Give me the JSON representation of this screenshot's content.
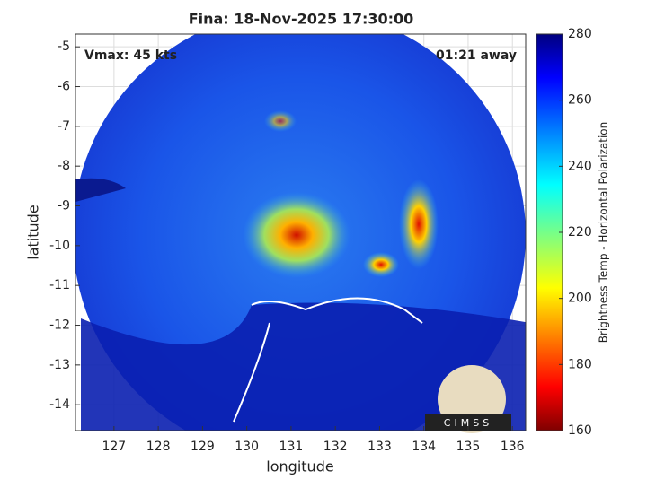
{
  "chart_data": {
    "type": "map",
    "title": "Fina: 18-Nov-2025 17:30:00",
    "xlabel": "longitude",
    "ylabel": "latitude",
    "xlim": [
      126.13,
      136.3
    ],
    "ylim": [
      -14.65,
      -4.68
    ],
    "xticks": [
      127,
      128,
      129,
      130,
      131,
      132,
      133,
      134,
      135,
      136
    ],
    "yticks": [
      -14,
      -13,
      -12,
      -11,
      -10,
      -9,
      -8,
      -7,
      -6,
      -5
    ],
    "grid": true,
    "annotations": [
      "Vmax: 45 kts",
      "01:21 away"
    ],
    "colorbar": {
      "label": "Brightness Temp - Horizontal Polarization",
      "lim": [
        160,
        280
      ],
      "ticks": [
        160,
        180,
        200,
        220,
        240,
        260,
        280
      ],
      "colormap": "jet"
    },
    "logo": "CIMSS"
  }
}
